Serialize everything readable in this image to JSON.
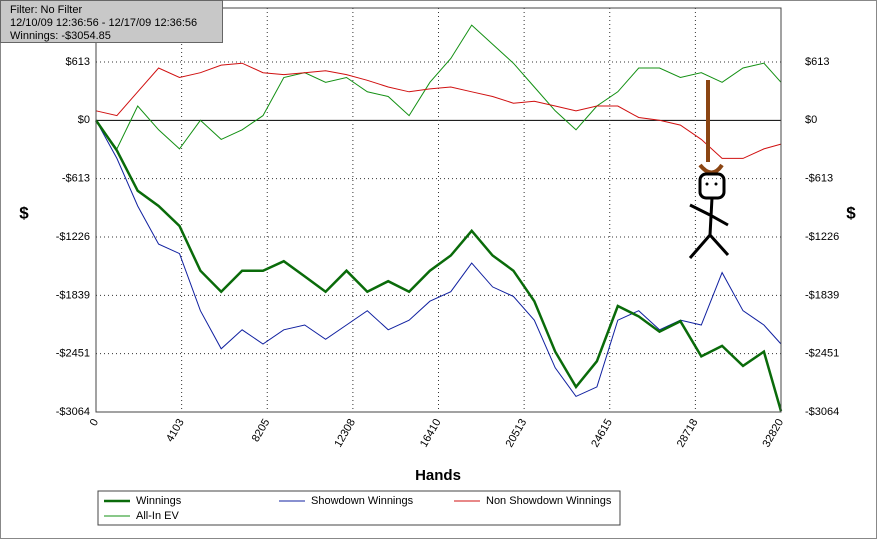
{
  "chart_data": {
    "type": "line",
    "info": [
      "Filter: No Filter",
      "12/10/09 12:36:56 - 12/17/09 12:36:56",
      "Winnings: -$3054.85"
    ],
    "x_label": "Hands",
    "y_label": "$",
    "x": [
      0,
      1000,
      2000,
      3000,
      4000,
      5000,
      6000,
      7000,
      8000,
      9000,
      10000,
      11000,
      12000,
      13000,
      14000,
      15000,
      16000,
      17000,
      18000,
      19000,
      20000,
      21000,
      22000,
      23000,
      24000,
      25000,
      26000,
      27000,
      28000,
      29000,
      30000,
      31000,
      32000,
      32820
    ],
    "xlim": [
      0,
      32820
    ],
    "xticks": [
      0,
      4103,
      8205,
      12308,
      16410,
      20513,
      24615,
      28718,
      32820
    ],
    "ylim": [
      -3064,
      1180
    ],
    "yticks": [
      {
        "value": 613,
        "label": "$613"
      },
      {
        "value": 0,
        "label": "$0"
      },
      {
        "value": -613,
        "label": "-$613"
      },
      {
        "value": -1226,
        "label": "-$1226"
      },
      {
        "value": -1839,
        "label": "-$1839"
      },
      {
        "value": -2451,
        "label": "-$2451"
      },
      {
        "value": -3064,
        "label": "-$3064"
      }
    ],
    "grid": true,
    "series": [
      {
        "name": "Winnings",
        "color": "#0a6b0a",
        "width": 2.5,
        "values": [
          0,
          -317,
          -740,
          -900,
          -1110,
          -1580,
          -1800,
          -1580,
          -1580,
          -1480,
          -1640,
          -1800,
          -1580,
          -1800,
          -1690,
          -1800,
          -1580,
          -1420,
          -1160,
          -1420,
          -1580,
          -1900,
          -2430,
          -2800,
          -2530,
          -1950,
          -2060,
          -2220,
          -2110,
          -2480,
          -2370,
          -2580,
          -2430,
          -3055
        ]
      },
      {
        "name": "Showdown Winnings",
        "color": "#1020a0",
        "width": 1,
        "values": [
          0,
          -400,
          -900,
          -1300,
          -1400,
          -2000,
          -2400,
          -2200,
          -2350,
          -2200,
          -2150,
          -2300,
          -2150,
          -2000,
          -2200,
          -2100,
          -1900,
          -1800,
          -1500,
          -1750,
          -1850,
          -2100,
          -2600,
          -2900,
          -2800,
          -2100,
          -2000,
          -2200,
          -2100,
          -2150,
          -1600,
          -2000,
          -2150,
          -2350
        ]
      },
      {
        "name": "Non Showdown Winnings",
        "color": "#d01010",
        "width": 1,
        "values": [
          100,
          50,
          300,
          550,
          450,
          500,
          580,
          600,
          500,
          480,
          500,
          520,
          480,
          420,
          350,
          300,
          330,
          350,
          300,
          250,
          180,
          200,
          150,
          100,
          150,
          150,
          30,
          0,
          -50,
          -200,
          -400,
          -400,
          -300,
          -250
        ]
      },
      {
        "name": "All-In EV",
        "color": "#139013",
        "width": 1,
        "values": [
          0,
          -300,
          150,
          -100,
          -300,
          0,
          -200,
          -100,
          50,
          450,
          500,
          400,
          450,
          300,
          250,
          50,
          400,
          650,
          1000,
          800,
          600,
          350,
          100,
          -100,
          150,
          300,
          550,
          550,
          450,
          500,
          400,
          550,
          600,
          400
        ]
      }
    ]
  }
}
